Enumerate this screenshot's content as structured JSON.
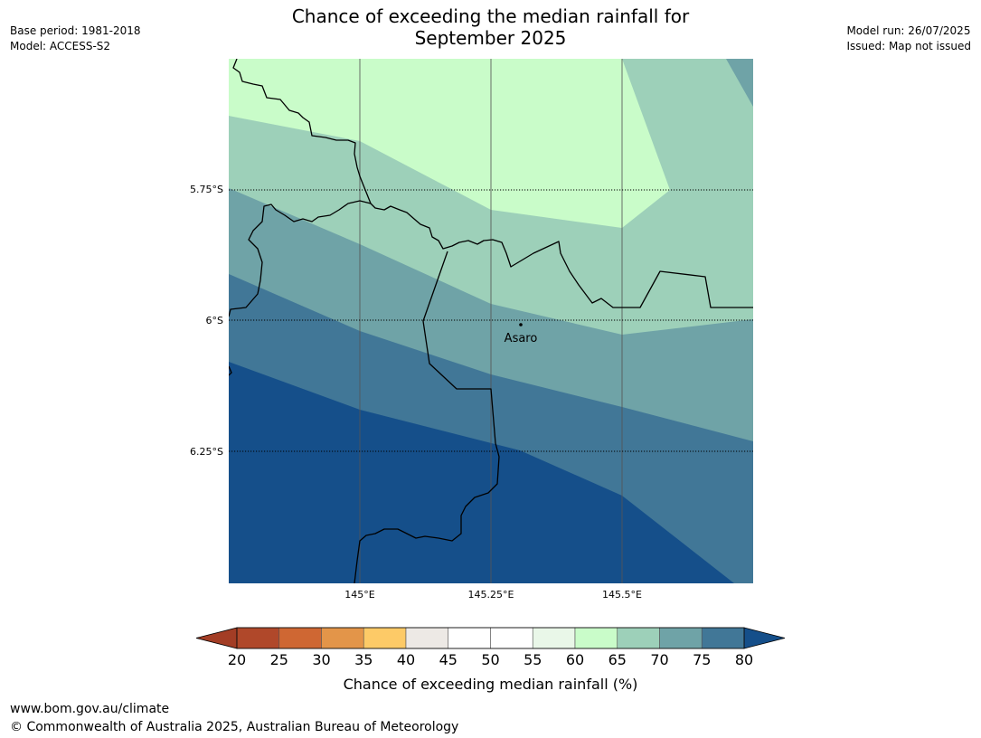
{
  "header": {
    "title_line1": "Chance of exceeding the median rainfall for",
    "title_line2": "September 2025",
    "base_period": "Base period: 1981-2018",
    "model": "Model: ACCESS-S2",
    "model_run": "Model run: 26/07/2025",
    "issued": "Issued: Map not issued"
  },
  "map": {
    "place": {
      "name": "Asaro",
      "lon": 145.31,
      "lat": -6.01
    },
    "lat_ticks": [
      {
        "value": -5.75,
        "label": "5.75°S"
      },
      {
        "value": -6.0,
        "label": "6°S"
      },
      {
        "value": -6.25,
        "label": "6.25°S"
      }
    ],
    "lon_ticks": [
      {
        "value": 145.0,
        "label": "145°E"
      },
      {
        "value": 145.25,
        "label": "145.25°E"
      },
      {
        "value": 145.5,
        "label": "145.5°E"
      }
    ]
  },
  "colorbar": {
    "title": "Chance of exceeding median rainfall (%)",
    "under_color": "#a33d25",
    "over_color": "#154f8a",
    "bins": [
      {
        "from": 20,
        "to": 25,
        "color": "#b0482a"
      },
      {
        "from": 25,
        "to": 30,
        "color": "#cf6733"
      },
      {
        "from": 30,
        "to": 35,
        "color": "#e39549"
      },
      {
        "from": 35,
        "to": 40,
        "color": "#fdca67"
      },
      {
        "from": 40,
        "to": 45,
        "color": "#ede9e5"
      },
      {
        "from": 45,
        "to": 50,
        "color": "#ffffff"
      },
      {
        "from": 50,
        "to": 55,
        "color": "#ffffff"
      },
      {
        "from": 55,
        "to": 60,
        "color": "#e9f7e8"
      },
      {
        "from": 60,
        "to": 65,
        "color": "#c9fcc9"
      },
      {
        "from": 65,
        "to": 70,
        "color": "#9dd0b9"
      },
      {
        "from": 70,
        "to": 75,
        "color": "#6fa3a7"
      },
      {
        "from": 75,
        "to": 80,
        "color": "#417797"
      }
    ],
    "tick_labels": [
      "20",
      "25",
      "30",
      "35",
      "40",
      "45",
      "50",
      "55",
      "60",
      "65",
      "70",
      "75",
      "80"
    ]
  },
  "footer": {
    "url": "www.bom.gov.au/climate",
    "copyright": "© Commonwealth of Australia 2025, Australian Bureau of Meteorology"
  }
}
